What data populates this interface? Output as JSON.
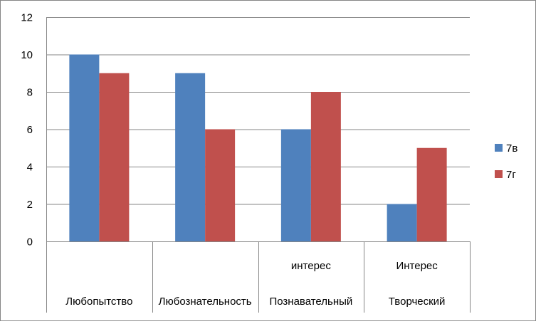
{
  "chart_data": {
    "type": "bar",
    "categories": [
      {
        "line1": "",
        "line2": "Любопытство"
      },
      {
        "line1": "",
        "line2": "Любознательность"
      },
      {
        "line1": "интерес",
        "line2": "Познавательный"
      },
      {
        "line1": "Интерес",
        "line2": "Творческий"
      }
    ],
    "series": [
      {
        "name": "7в",
        "color": "#4f81bd",
        "values": [
          10,
          9,
          6,
          2
        ]
      },
      {
        "name": "7г",
        "color": "#c0504d",
        "values": [
          9,
          6,
          8,
          5
        ]
      }
    ],
    "y_ticks": [
      "0",
      "2",
      "4",
      "6",
      "8",
      "10",
      "12"
    ],
    "ylim": [
      0,
      12
    ],
    "grid": true,
    "legend_position": "right",
    "gridline_color": "#868686"
  }
}
